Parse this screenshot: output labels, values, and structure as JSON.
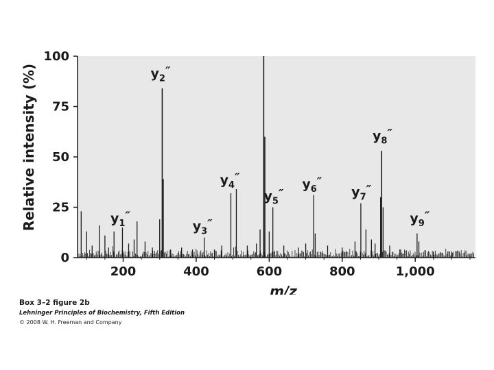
{
  "chart_data": {
    "type": "bar",
    "xlabel": "m/z",
    "ylabel": "Relative intensity (%)",
    "xlim": [
      75,
      1165
    ],
    "ylim": [
      0,
      100
    ],
    "x_ticks": [
      {
        "value": 200,
        "label": "200"
      },
      {
        "value": 400,
        "label": "400"
      },
      {
        "value": 600,
        "label": "600"
      },
      {
        "value": 800,
        "label": "800"
      },
      {
        "value": 1000,
        "label": "1,000"
      }
    ],
    "y_ticks": [
      {
        "value": 0,
        "label": "0"
      },
      {
        "value": 25,
        "label": "25"
      },
      {
        "value": 50,
        "label": "50"
      },
      {
        "value": 75,
        "label": "75"
      },
      {
        "value": 100,
        "label": "100"
      }
    ],
    "peaks": [
      {
        "x": 85,
        "y": 23
      },
      {
        "x": 100,
        "y": 13
      },
      {
        "x": 115,
        "y": 6
      },
      {
        "x": 135,
        "y": 16
      },
      {
        "x": 150,
        "y": 11
      },
      {
        "x": 160,
        "y": 5
      },
      {
        "x": 175,
        "y": 13
      },
      {
        "x": 198,
        "y": 15
      },
      {
        "x": 215,
        "y": 7
      },
      {
        "x": 230,
        "y": 9
      },
      {
        "x": 238,
        "y": 18
      },
      {
        "x": 260,
        "y": 8
      },
      {
        "x": 280,
        "y": 5
      },
      {
        "x": 300,
        "y": 19
      },
      {
        "x": 307,
        "y": 84
      },
      {
        "x": 310,
        "y": 39
      },
      {
        "x": 330,
        "y": 4
      },
      {
        "x": 360,
        "y": 5
      },
      {
        "x": 390,
        "y": 4
      },
      {
        "x": 422,
        "y": 10
      },
      {
        "x": 450,
        "y": 4
      },
      {
        "x": 470,
        "y": 6
      },
      {
        "x": 495,
        "y": 32
      },
      {
        "x": 510,
        "y": 34
      },
      {
        "x": 540,
        "y": 6
      },
      {
        "x": 565,
        "y": 7
      },
      {
        "x": 575,
        "y": 14
      },
      {
        "x": 585,
        "y": 100
      },
      {
        "x": 588,
        "y": 60
      },
      {
        "x": 600,
        "y": 13
      },
      {
        "x": 610,
        "y": 25
      },
      {
        "x": 640,
        "y": 6
      },
      {
        "x": 680,
        "y": 5
      },
      {
        "x": 700,
        "y": 7
      },
      {
        "x": 722,
        "y": 31
      },
      {
        "x": 726,
        "y": 12
      },
      {
        "x": 760,
        "y": 6
      },
      {
        "x": 800,
        "y": 5
      },
      {
        "x": 835,
        "y": 8
      },
      {
        "x": 851,
        "y": 27
      },
      {
        "x": 865,
        "y": 14
      },
      {
        "x": 880,
        "y": 9
      },
      {
        "x": 890,
        "y": 7
      },
      {
        "x": 905,
        "y": 30
      },
      {
        "x": 908,
        "y": 53
      },
      {
        "x": 912,
        "y": 25
      },
      {
        "x": 930,
        "y": 6
      },
      {
        "x": 960,
        "y": 4
      },
      {
        "x": 1005,
        "y": 12
      },
      {
        "x": 1010,
        "y": 8
      },
      {
        "x": 1050,
        "y": 3
      },
      {
        "x": 1100,
        "y": 3
      },
      {
        "x": 1150,
        "y": 2
      }
    ],
    "annotations": [
      {
        "name": "y1",
        "base": "y",
        "sub": "1",
        "mark": "″",
        "x": 200,
        "y": 16
      },
      {
        "name": "y2",
        "base": "y",
        "sub": "2",
        "mark": "″",
        "x": 310,
        "y": 88
      },
      {
        "name": "y3",
        "base": "y",
        "sub": "3",
        "mark": "″",
        "x": 425,
        "y": 12
      },
      {
        "name": "y4",
        "base": "y",
        "sub": "4",
        "mark": "″",
        "x": 500,
        "y": 35
      },
      {
        "name": "y5",
        "base": "y",
        "sub": "5",
        "mark": "″",
        "x": 620,
        "y": 27
      },
      {
        "name": "y6",
        "base": "y",
        "sub": "6",
        "mark": "″",
        "x": 725,
        "y": 33
      },
      {
        "name": "y7",
        "base": "y",
        "sub": "7",
        "mark": "″",
        "x": 860,
        "y": 29
      },
      {
        "name": "y8",
        "base": "y",
        "sub": "8",
        "mark": "″",
        "x": 918,
        "y": 57
      },
      {
        "name": "y9",
        "base": "y",
        "sub": "9",
        "mark": "″",
        "x": 1020,
        "y": 16
      }
    ],
    "grid": false
  },
  "caption": {
    "figure": "Box 3–2 figure 2b",
    "book": "Lehninger Principles of Biochemistry, Fifth Edition",
    "copyright": "© 2008 W. H. Freeman and Company"
  }
}
